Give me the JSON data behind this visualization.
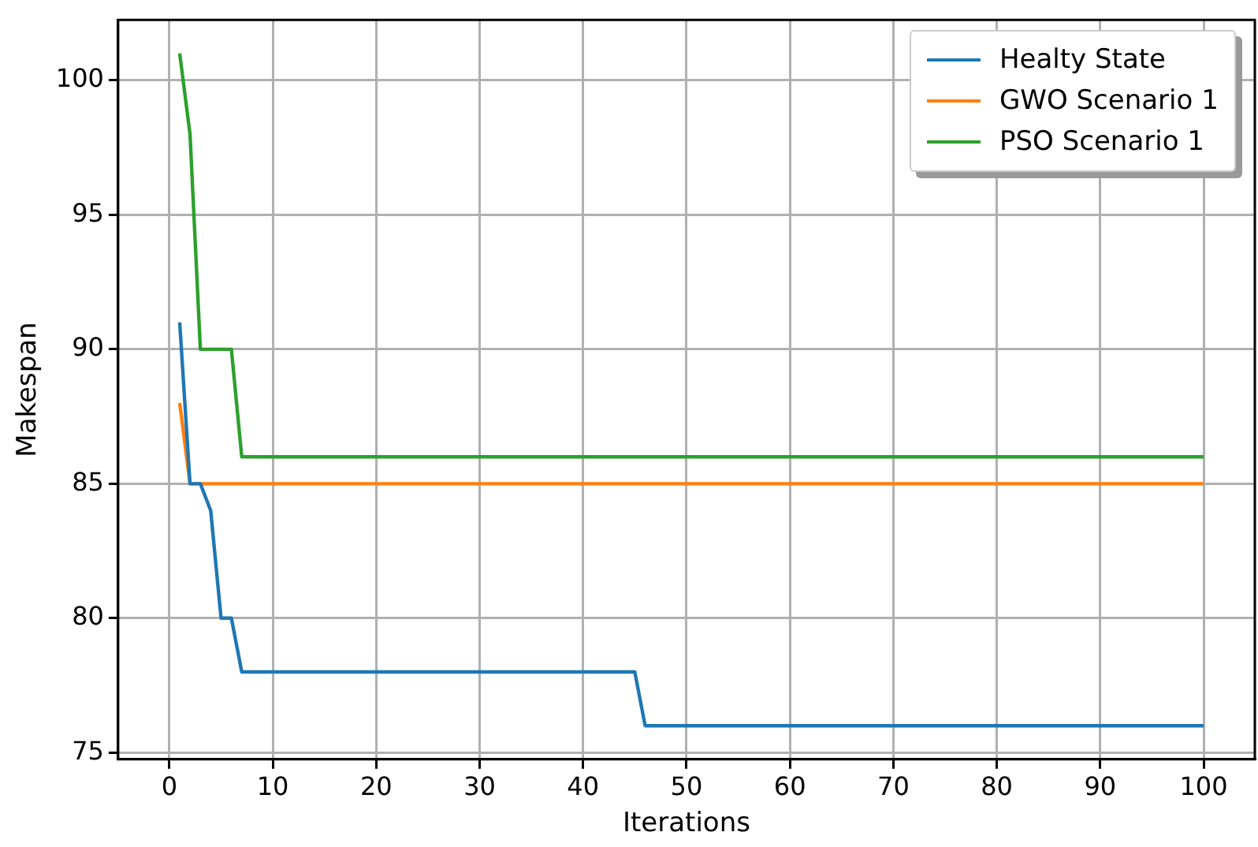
{
  "chart_data": {
    "type": "line",
    "xlabel": "Iterations",
    "ylabel": "Makespan",
    "series": [
      {
        "name": "Healty State",
        "color": "#1f77b4",
        "x": [
          1,
          2,
          3,
          4,
          5,
          6,
          7,
          45,
          46,
          100
        ],
        "values": [
          91,
          85,
          85,
          84,
          80,
          80,
          78,
          78,
          76,
          76
        ]
      },
      {
        "name": "GWO Scenario 1",
        "color": "#ff7f0e",
        "x": [
          1,
          2,
          100
        ],
        "values": [
          88,
          85,
          85
        ]
      },
      {
        "name": "PSO Scenario 1",
        "color": "#2ca02c",
        "x": [
          1,
          2,
          3,
          6,
          7,
          100
        ],
        "values": [
          101,
          98,
          90,
          90,
          86,
          86
        ]
      }
    ],
    "xlim": [
      -4.95,
      104.95
    ],
    "xticks": [
      0,
      10,
      20,
      30,
      40,
      50,
      60,
      70,
      80,
      90,
      100
    ],
    "ylim": [
      74.75,
      102.25
    ],
    "yticks": [
      75,
      80,
      85,
      90,
      95,
      100
    ],
    "grid": true,
    "legend": "top right",
    "marker": "none",
    "line_style": "solid"
  }
}
